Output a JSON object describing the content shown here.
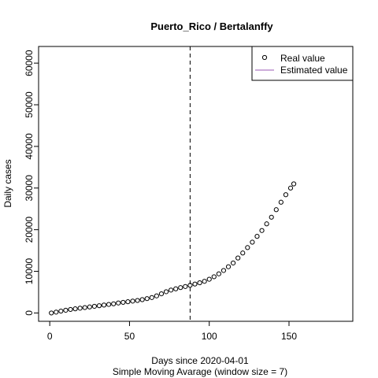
{
  "chart_data": {
    "type": "scatter",
    "title": "Puerto_Rico / Bertalanffy",
    "xlabel": "Days since 2020-04-01",
    "xlabel_sub": "Simple Moving Avarage (window size = 7)",
    "ylabel": "Daily cases",
    "xlim": [
      -7,
      190
    ],
    "ylim": [
      -2000,
      64000
    ],
    "x_ticks": [
      0,
      50,
      100,
      150
    ],
    "y_ticks": [
      0,
      10000,
      20000,
      30000,
      40000,
      50000,
      60000
    ],
    "vline_x": 88,
    "legend": {
      "position": "top-right",
      "items": [
        {
          "label": "Real value",
          "kind": "point"
        },
        {
          "label": "Estimated value",
          "kind": "line",
          "color": "#9b59b6"
        }
      ]
    },
    "series": [
      {
        "name": "Real value",
        "kind": "points",
        "x": [
          1,
          4,
          7,
          10,
          13,
          16,
          19,
          22,
          25,
          28,
          31,
          34,
          37,
          40,
          43,
          46,
          49,
          52,
          55,
          58,
          61,
          64,
          67,
          70,
          73,
          76,
          79,
          82,
          85,
          88,
          91,
          94,
          97,
          100,
          103,
          106,
          109,
          112,
          115,
          118,
          121,
          124,
          127,
          130,
          133,
          136,
          139,
          142,
          145,
          148,
          151,
          153
        ],
        "y": [
          0,
          200,
          450,
          650,
          850,
          1000,
          1150,
          1300,
          1450,
          1600,
          1750,
          1900,
          2050,
          2200,
          2400,
          2550,
          2700,
          2850,
          3000,
          3200,
          3450,
          3700,
          4100,
          4600,
          5100,
          5500,
          5800,
          6100,
          6350,
          6650,
          6950,
          7250,
          7600,
          8100,
          8700,
          9400,
          10200,
          11100,
          12000,
          13200,
          14400,
          15700,
          17000,
          18400,
          19800,
          21400,
          23000,
          24800,
          26600,
          28400,
          30000,
          31000
        ]
      }
    ]
  }
}
